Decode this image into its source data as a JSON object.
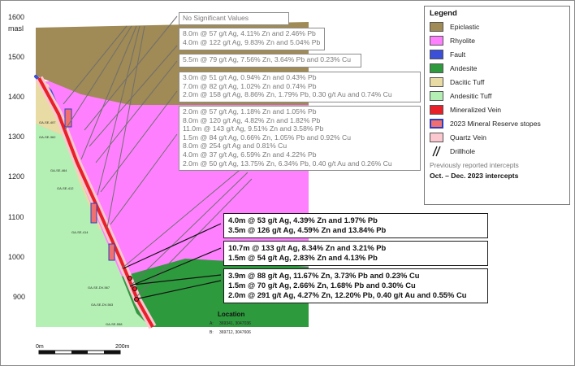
{
  "axis": {
    "elevation_labels": [
      "1600",
      "1500",
      "1400",
      "1300",
      "1200",
      "1100",
      "1000",
      "900"
    ],
    "unit": "masl"
  },
  "scale_bar": {
    "start": "0m",
    "end": "200m"
  },
  "drillholes": [
    "GA-SE-407",
    "GA-SE-362",
    "GA-SE-464",
    "GA-SE-412",
    "GA-SE-414",
    "GA-SE-DV-567",
    "GA-SE-DV-563",
    "GA-SE-558"
  ],
  "location": {
    "title": "Location",
    "point_a_label": "A:",
    "point_a": "369341, 3047036",
    "point_b_label": "B:",
    "point_b": "369712, 3047606"
  },
  "previous_intercepts": [
    {
      "lines": [
        "No Significant Values"
      ]
    },
    {
      "lines": [
        "8.0m @ 57 g/t Ag, 4.11% Zn and 2.46% Pb",
        "4.0m @ 122 g/t Ag, 9.83% Zn and 5.04% Pb"
      ]
    },
    {
      "lines": [
        "5.5m @ 79 g/t Ag, 7.56% Zn, 3.64% Pb and 0.23% Cu"
      ]
    },
    {
      "lines": [
        "3.0m @ 51 g/t Ag, 0.94% Zn and 0.43% Pb",
        "7.0m @ 82 g/t Ag, 1.02% Zn and 0.74% Pb",
        "2.0m @ 158 g/t Ag, 8.86% Zn, 1.79% Pb, 0.30 g/t Au and 0.74% Cu"
      ]
    },
    {
      "lines": [
        "2.0m @ 57 g/t Ag, 1.18% Zn and 1.05% Pb",
        "8.0m @ 120 g/t Ag, 4.82% Zn and 1.82% Pb",
        "11.0m @ 143 g/t Ag, 9.51% Zn and 3.58% Pb",
        "1.5m @ 84 g/t Ag, 0.66% Zn, 1.05% Pb and 0.92% Cu",
        "8.0m @ 254 g/t Ag and 0.81% Cu",
        "4.0m @ 37 g/t Ag, 6.59% Zn and 4.22% Pb",
        "2.0m @ 50 g/t Ag, 13.75% Zn, 6.34% Pb, 0.40 g/t Au and 0.26% Cu"
      ]
    }
  ],
  "new_intercepts": [
    {
      "lines": [
        "4.0m @ 53 g/t Ag, 4.39% Zn and 1.97% Pb",
        "3.5m @ 126 g/t Ag, 4.59% Zn and 13.84% Pb"
      ]
    },
    {
      "lines": [
        "10.7m @ 133 g/t Ag, 8.34% Zn and 3.21% Pb",
        "1.5m @ 54 g/t Ag, 2.83% Zn and 4.13% Pb"
      ]
    },
    {
      "lines": [
        "3.9m @ 88 g/t Ag, 11.67% Zn, 3.73% Pb and 0.23% Cu",
        "1.5m @ 70 g/t Ag, 2.66% Zn, 1.68% Pb and 0.30% Cu",
        "2.0m @ 291 g/t Ag, 4.27% Zn, 12.20% Pb, 0.40 g/t Au and 0.55% Cu"
      ]
    }
  ],
  "legend": {
    "title": "Legend",
    "items": [
      {
        "label": "Epiclastic",
        "color": "#a08a55"
      },
      {
        "label": "Rhyolite",
        "color": "#ff80ff"
      },
      {
        "label": "Fault",
        "color": "#3b4fd8"
      },
      {
        "label": "Andesite",
        "color": "#2e9a3e"
      },
      {
        "label": "Dacitic Tuff",
        "color": "#e8dca4"
      },
      {
        "label": "Andesitic Tuff",
        "color": "#b4f0b4"
      },
      {
        "label": "Mineralized Vein",
        "color": "#e8202a"
      },
      {
        "label": "2023 Mineral Reserve stopes",
        "color": "#f07070",
        "border": "#2a3fbf"
      },
      {
        "label": "Quartz Vein",
        "color": "#fbc8d0"
      },
      {
        "label": "Drillhole",
        "icon": "drillhole-icon"
      }
    ],
    "note_previous": "Previously reported intercepts",
    "note_current": "Oct. – Dec. 2023 intercepts"
  }
}
